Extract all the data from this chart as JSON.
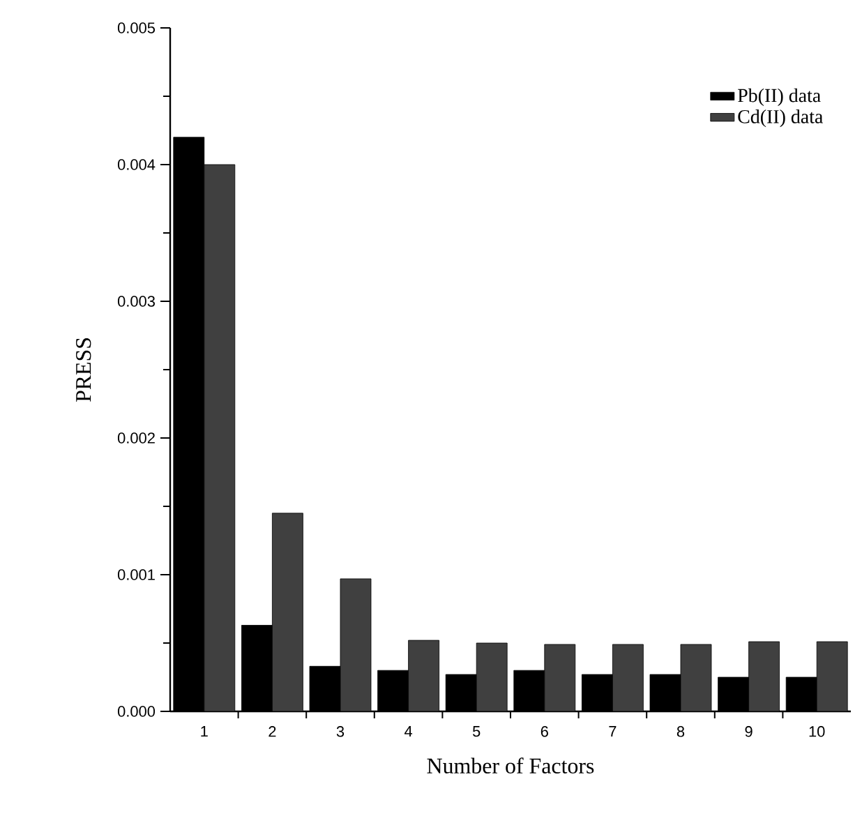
{
  "chart_data": {
    "type": "bar",
    "xlabel": "Number of Factors",
    "ylabel": "PRESS",
    "categories": [
      "1",
      "2",
      "3",
      "4",
      "5",
      "6",
      "7",
      "8",
      "9",
      "10"
    ],
    "series": [
      {
        "name": "Pb(II) data",
        "color": "#000000",
        "values": [
          0.0042,
          0.00063,
          0.00033,
          0.0003,
          0.00027,
          0.0003,
          0.00027,
          0.00027,
          0.00025,
          0.00025
        ]
      },
      {
        "name": "Cd(II) data",
        "color": "#404040",
        "values": [
          0.004,
          0.00145,
          0.00097,
          0.00052,
          0.0005,
          0.00049,
          0.00049,
          0.00049,
          0.00051,
          0.00051
        ]
      }
    ],
    "ylim": [
      0,
      0.005
    ],
    "yticks": [
      {
        "value": 0,
        "label": "0.000"
      },
      {
        "value": 0.001,
        "label": "0.001"
      },
      {
        "value": 0.002,
        "label": "0.002"
      },
      {
        "value": 0.003,
        "label": "0.003"
      },
      {
        "value": 0.004,
        "label": "0.004"
      },
      {
        "value": 0.005,
        "label": "0.005"
      }
    ],
    "legend": "top right",
    "grid": false
  }
}
